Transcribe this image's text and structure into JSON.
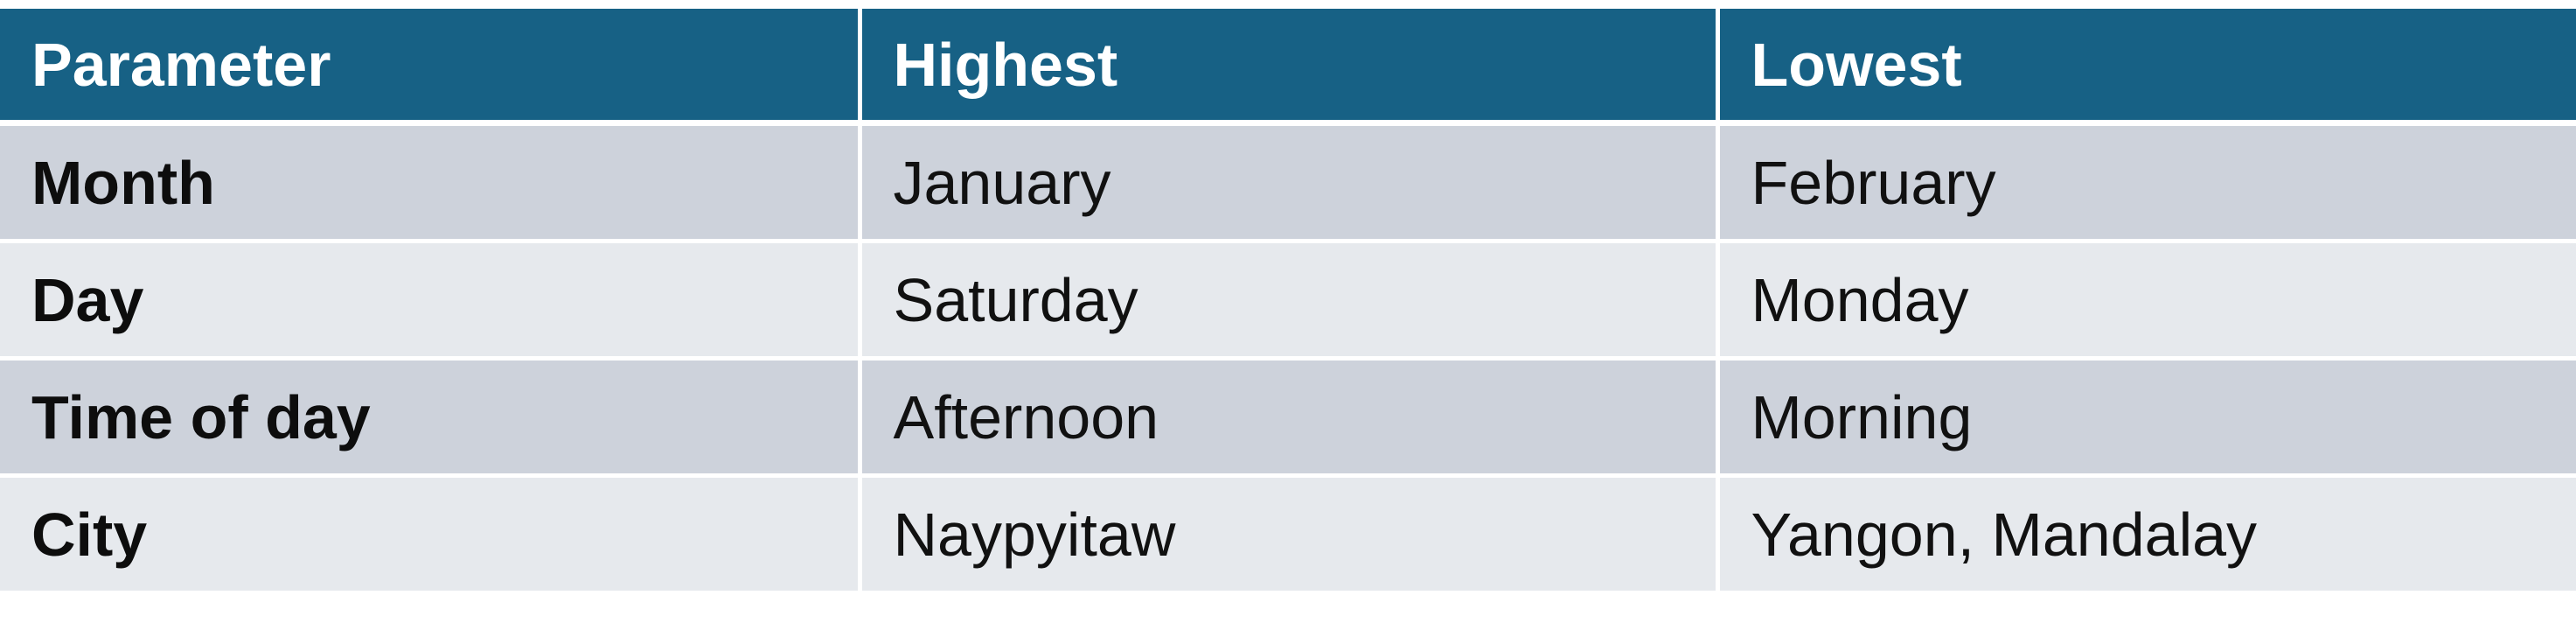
{
  "table": {
    "headers": [
      "Parameter",
      "Highest",
      "Lowest"
    ],
    "rows": [
      {
        "parameter": "Month",
        "highest": "January",
        "lowest": "February"
      },
      {
        "parameter": "Day",
        "highest": "Saturday",
        "lowest": "Monday"
      },
      {
        "parameter": "Time of day",
        "highest": "Afternoon",
        "lowest": "Morning"
      },
      {
        "parameter": "City",
        "highest": "Naypyitaw",
        "lowest": "Yangon, Mandalay"
      }
    ]
  },
  "colors": {
    "header_bg": "#176185",
    "header_text": "#ffffff",
    "row_dark": "#cdd2db",
    "row_light": "#e6e9ed"
  }
}
